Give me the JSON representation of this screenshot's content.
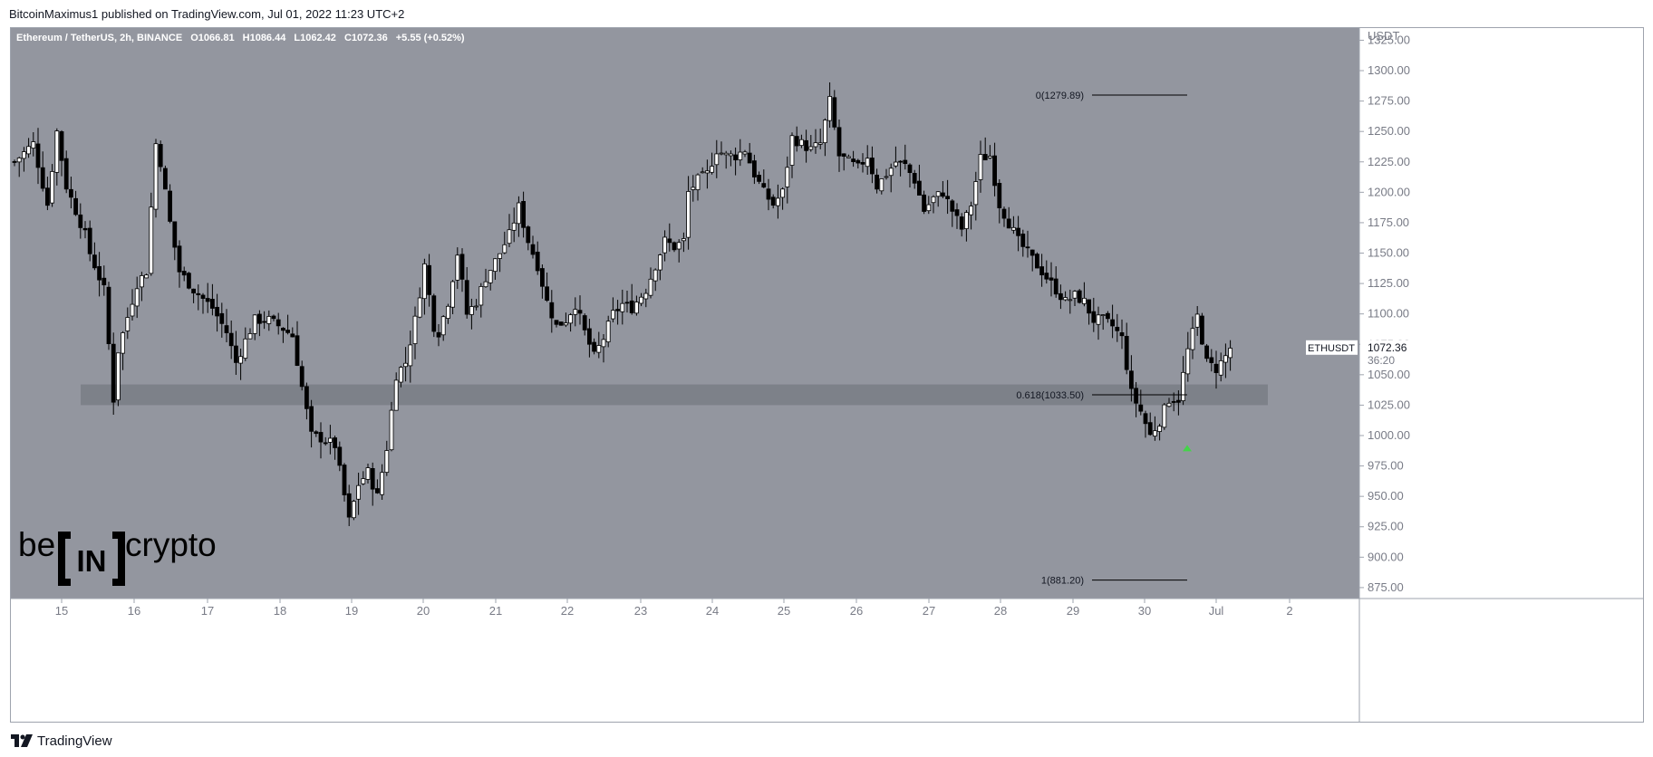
{
  "header": {
    "published": "BitcoinMaximus1 published on TradingView.com, Jul 01, 2022 11:23 UTC+2"
  },
  "legend": {
    "symbol": "Ethereum / TetherUS, 2h, BINANCE",
    "o_label": "O",
    "o_value": "1066.81",
    "h_label": "H",
    "h_value": "1086.44",
    "l_label": "L",
    "l_value": "1062.42",
    "c_label": "C",
    "c_value": "1072.36",
    "change": "+5.55 (+0.52%)"
  },
  "price_axis": {
    "currency": "USDT",
    "ticks": [
      "1325.00",
      "1300.00",
      "1275.00",
      "1250.00",
      "1225.00",
      "1200.00",
      "1175.00",
      "1150.00",
      "1125.00",
      "1100.00",
      "1075.00",
      "1050.00",
      "1025.00",
      "1000.00",
      "975.00",
      "950.00",
      "925.00",
      "900.00",
      "875.00"
    ]
  },
  "time_axis": {
    "ticks": [
      "15",
      "16",
      "17",
      "18",
      "19",
      "20",
      "21",
      "22",
      "23",
      "24",
      "25",
      "26",
      "27",
      "28",
      "29",
      "30",
      "Jul",
      "2"
    ]
  },
  "last_price": {
    "symbol": "ETHUSDT",
    "price": "1072.36",
    "countdown": "36:20"
  },
  "fib": {
    "level_0": "0(1279.89)",
    "level_618": "0.618(1033.50)",
    "level_1": "1(881.20)"
  },
  "watermark": {
    "left": "be",
    "middle": "IN",
    "right": "crypto"
  },
  "footer": {
    "brand": "TradingView"
  },
  "colors": {
    "background": "#93969f",
    "support_zone": "#7b7e86",
    "candle_up_fill": "#ffffff",
    "candle_down_fill": "#000000",
    "outline": "#000000",
    "arrow": "#45d34a",
    "axis_text": "#787b86"
  },
  "chart_data": {
    "type": "candlestick",
    "title": "Ethereum / TetherUS, 2h, BINANCE",
    "ylabel": "USDT",
    "ylim": [
      866,
      1335
    ],
    "x_ticks": [
      "15",
      "16",
      "17",
      "18",
      "19",
      "20",
      "21",
      "22",
      "23",
      "24",
      "25",
      "26",
      "27",
      "28",
      "29",
      "30",
      "Jul",
      "2"
    ],
    "support_zone": [
      1025,
      1042
    ],
    "fib_levels": [
      {
        "ratio": "0",
        "price": 1279.89
      },
      {
        "ratio": "0.618",
        "price": 1033.5
      },
      {
        "ratio": "1",
        "price": 881.2
      }
    ],
    "last_close": 1072.36,
    "arrow_marker": {
      "date": "30",
      "price": 990
    },
    "path": [
      [
        0,
        1225
      ],
      [
        4,
        1240
      ],
      [
        7,
        1190
      ],
      [
        9,
        1250
      ],
      [
        11,
        1205
      ],
      [
        15,
        1165
      ],
      [
        16,
        1150
      ],
      [
        19,
        1120
      ],
      [
        21,
        1030
      ],
      [
        22,
        1070
      ],
      [
        26,
        1125
      ],
      [
        28,
        1135
      ],
      [
        30,
        1240
      ],
      [
        31,
        1225
      ],
      [
        33,
        1175
      ],
      [
        35,
        1135
      ],
      [
        38,
        1120
      ],
      [
        42,
        1105
      ],
      [
        45,
        1085
      ],
      [
        47,
        1060
      ],
      [
        49,
        1078
      ],
      [
        51,
        1095
      ],
      [
        54,
        1095
      ],
      [
        57,
        1088
      ],
      [
        59,
        1082
      ],
      [
        61,
        1040
      ],
      [
        63,
        1000
      ],
      [
        65,
        998
      ],
      [
        68,
        992
      ],
      [
        71,
        930
      ],
      [
        73,
        960
      ],
      [
        75,
        970
      ],
      [
        77,
        950
      ],
      [
        79,
        990
      ],
      [
        81,
        1050
      ],
      [
        83,
        1060
      ],
      [
        85,
        1095
      ],
      [
        87,
        1140
      ],
      [
        89,
        1090
      ],
      [
        90,
        1085
      ],
      [
        92,
        1110
      ],
      [
        94,
        1150
      ],
      [
        96,
        1100
      ],
      [
        98,
        1110
      ],
      [
        100,
        1130
      ],
      [
        103,
        1150
      ],
      [
        105,
        1165
      ],
      [
        107,
        1188
      ],
      [
        109,
        1160
      ],
      [
        111,
        1140
      ],
      [
        113,
        1110
      ],
      [
        115,
        1090
      ],
      [
        117,
        1095
      ],
      [
        119,
        1108
      ],
      [
        121,
        1085
      ],
      [
        123,
        1065
      ],
      [
        125,
        1080
      ],
      [
        127,
        1100
      ],
      [
        129,
        1108
      ],
      [
        131,
        1105
      ],
      [
        134,
        1120
      ],
      [
        136,
        1140
      ],
      [
        138,
        1160
      ],
      [
        140,
        1155
      ],
      [
        142,
        1160
      ],
      [
        143,
        1200
      ],
      [
        145,
        1210
      ],
      [
        147,
        1215
      ],
      [
        149,
        1235
      ],
      [
        151,
        1230
      ],
      [
        153,
        1230
      ],
      [
        155,
        1235
      ],
      [
        157,
        1215
      ],
      [
        159,
        1200
      ],
      [
        161,
        1190
      ],
      [
        163,
        1200
      ],
      [
        165,
        1245
      ],
      [
        167,
        1240
      ],
      [
        169,
        1235
      ],
      [
        171,
        1240
      ],
      [
        173,
        1275
      ],
      [
        175,
        1230
      ],
      [
        177,
        1225
      ],
      [
        179,
        1220
      ],
      [
        181,
        1230
      ],
      [
        183,
        1205
      ],
      [
        185,
        1215
      ],
      [
        187,
        1225
      ],
      [
        189,
        1222
      ],
      [
        191,
        1210
      ],
      [
        193,
        1185
      ],
      [
        195,
        1195
      ],
      [
        197,
        1200
      ],
      [
        199,
        1185
      ],
      [
        201,
        1170
      ],
      [
        203,
        1190
      ],
      [
        205,
        1228
      ],
      [
        207,
        1230
      ],
      [
        209,
        1190
      ],
      [
        211,
        1175
      ],
      [
        213,
        1160
      ],
      [
        215,
        1150
      ],
      [
        217,
        1140
      ],
      [
        219,
        1130
      ],
      [
        221,
        1120
      ],
      [
        223,
        1110
      ],
      [
        225,
        1115
      ],
      [
        227,
        1110
      ],
      [
        229,
        1095
      ],
      [
        231,
        1095
      ],
      [
        233,
        1090
      ],
      [
        235,
        1080
      ],
      [
        237,
        1035
      ],
      [
        239,
        1020
      ],
      [
        241,
        1000
      ],
      [
        243,
        1012
      ],
      [
        245,
        1030
      ],
      [
        247,
        1030
      ],
      [
        249,
        1070
      ],
      [
        251,
        1098
      ],
      [
        253,
        1060
      ],
      [
        255,
        1055
      ],
      [
        257,
        1065
      ],
      [
        258,
        1072
      ]
    ]
  }
}
